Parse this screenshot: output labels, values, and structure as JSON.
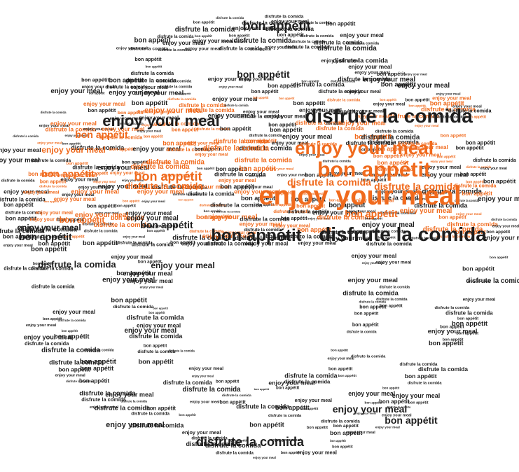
{
  "phrases": {
    "bon_appetit": "bon appétit",
    "enjoy_your_meal": "enjoy your meal",
    "disfrute_la_comida": "disfrute la comida"
  },
  "colors": {
    "dark": "#1e1e1e",
    "orange": "#f06a1d",
    "background": "#ffffff"
  },
  "shape": "bowl-icon"
}
